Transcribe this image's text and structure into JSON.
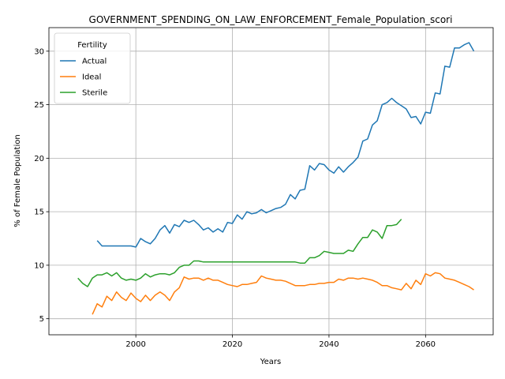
{
  "chart_data": {
    "type": "line",
    "title": "GOVERNMENT_SPENDING_ON_LAW_ENFORCEMENT_Female_Population_scori",
    "xlabel": "Years",
    "ylabel": "% of Female Population",
    "xlim": [
      1982,
      2074
    ],
    "ylim": [
      3.5,
      32.2
    ],
    "xticks": [
      2000,
      2020,
      2040,
      2060
    ],
    "yticks": [
      5,
      10,
      15,
      20,
      25,
      30
    ],
    "grid": true,
    "legend": {
      "title": "Fertility",
      "placement": "top-left"
    },
    "series": [
      {
        "name": "Actual",
        "color": "#1f77b4",
        "x": [
          1992,
          1993,
          1994,
          1995,
          1996,
          1997,
          1998,
          1999,
          2000,
          2001,
          2002,
          2003,
          2004,
          2005,
          2006,
          2007,
          2008,
          2009,
          2010,
          2011,
          2012,
          2013,
          2014,
          2015,
          2016,
          2017,
          2018,
          2019,
          2020,
          2021,
          2022,
          2023,
          2024,
          2025,
          2026,
          2027,
          2028,
          2029,
          2030,
          2031,
          2032,
          2033,
          2034,
          2035,
          2036,
          2037,
          2038,
          2039,
          2040,
          2041,
          2042,
          2043,
          2044,
          2045,
          2046,
          2047,
          2048,
          2049,
          2050,
          2051,
          2052,
          2053,
          2054,
          2055,
          2056,
          2057,
          2058,
          2059,
          2060,
          2061,
          2062,
          2063,
          2064,
          2065,
          2066,
          2067,
          2068,
          2069,
          2070
        ],
        "y": [
          12.3,
          11.8,
          11.8,
          11.8,
          11.8,
          11.8,
          11.8,
          11.8,
          11.7,
          12.5,
          12.2,
          12.0,
          12.5,
          13.3,
          13.7,
          13.0,
          13.8,
          13.6,
          14.2,
          14.0,
          14.2,
          13.8,
          13.3,
          13.5,
          13.1,
          13.4,
          13.1,
          14.0,
          13.9,
          14.7,
          14.3,
          15.0,
          14.8,
          14.9,
          15.2,
          14.9,
          15.1,
          15.3,
          15.4,
          15.7,
          16.6,
          16.2,
          17.0,
          17.1,
          19.3,
          18.9,
          19.5,
          19.4,
          18.9,
          18.6,
          19.2,
          18.7,
          19.2,
          19.6,
          20.1,
          21.6,
          21.8,
          23.1,
          23.5,
          25.0,
          25.2,
          25.6,
          25.2,
          24.9,
          24.6,
          23.8,
          23.9,
          23.2,
          24.3,
          24.2,
          26.1,
          26.0,
          28.6,
          28.5,
          30.3,
          30.3,
          30.6,
          30.8,
          30.0
        ]
      },
      {
        "name": "Ideal",
        "color": "#ff7f0e",
        "x": [
          1991,
          1992,
          1993,
          1994,
          1995,
          1996,
          1997,
          1998,
          1999,
          2000,
          2001,
          2002,
          2003,
          2004,
          2005,
          2006,
          2007,
          2008,
          2009,
          2010,
          2011,
          2012,
          2013,
          2014,
          2015,
          2016,
          2017,
          2018,
          2019,
          2020,
          2021,
          2022,
          2023,
          2024,
          2025,
          2026,
          2027,
          2028,
          2029,
          2030,
          2031,
          2032,
          2033,
          2034,
          2035,
          2036,
          2037,
          2038,
          2039,
          2040,
          2041,
          2042,
          2043,
          2044,
          2045,
          2046,
          2047,
          2048,
          2049,
          2050,
          2051,
          2052,
          2053,
          2054,
          2055,
          2056,
          2057,
          2058,
          2059,
          2060,
          2061,
          2062,
          2063,
          2064,
          2065,
          2066,
          2067,
          2068,
          2069,
          2070
        ],
        "y": [
          5.4,
          6.4,
          6.1,
          7.1,
          6.7,
          7.5,
          7.0,
          6.7,
          7.4,
          6.9,
          6.6,
          7.2,
          6.7,
          7.2,
          7.5,
          7.2,
          6.7,
          7.5,
          7.9,
          8.9,
          8.7,
          8.8,
          8.8,
          8.6,
          8.8,
          8.6,
          8.6,
          8.4,
          8.2,
          8.1,
          8.0,
          8.2,
          8.2,
          8.3,
          8.4,
          9.0,
          8.8,
          8.7,
          8.6,
          8.6,
          8.5,
          8.3,
          8.1,
          8.1,
          8.1,
          8.2,
          8.2,
          8.3,
          8.3,
          8.4,
          8.4,
          8.7,
          8.6,
          8.8,
          8.8,
          8.7,
          8.8,
          8.7,
          8.6,
          8.4,
          8.1,
          8.1,
          7.9,
          7.8,
          7.7,
          8.3,
          7.8,
          8.6,
          8.2,
          9.2,
          9.0,
          9.3,
          9.2,
          8.8,
          8.7,
          8.6,
          8.4,
          8.2,
          8.0,
          7.7
        ]
      },
      {
        "name": "Sterile",
        "color": "#2ca02c",
        "x": [
          1988,
          1989,
          1990,
          1991,
          1992,
          1993,
          1994,
          1995,
          1996,
          1997,
          1998,
          1999,
          2000,
          2001,
          2002,
          2003,
          2004,
          2005,
          2006,
          2007,
          2008,
          2009,
          2010,
          2011,
          2012,
          2013,
          2014,
          2015,
          2016,
          2017,
          2018,
          2019,
          2020,
          2021,
          2022,
          2023,
          2024,
          2025,
          2026,
          2027,
          2028,
          2029,
          2030,
          2031,
          2032,
          2033,
          2034,
          2035,
          2036,
          2037,
          2038,
          2039,
          2040,
          2041,
          2042,
          2043,
          2044,
          2045,
          2046,
          2047,
          2048,
          2049,
          2050,
          2051,
          2052,
          2053,
          2054,
          2055
        ],
        "y": [
          8.8,
          8.3,
          8.0,
          8.8,
          9.1,
          9.1,
          9.3,
          9.0,
          9.3,
          8.8,
          8.6,
          8.7,
          8.6,
          8.8,
          9.2,
          8.9,
          9.1,
          9.2,
          9.2,
          9.1,
          9.3,
          9.8,
          10.0,
          10.0,
          10.4,
          10.4,
          10.3,
          10.3,
          10.3,
          10.3,
          10.3,
          10.3,
          10.3,
          10.3,
          10.3,
          10.3,
          10.3,
          10.3,
          10.3,
          10.3,
          10.3,
          10.3,
          10.3,
          10.3,
          10.3,
          10.3,
          10.2,
          10.2,
          10.7,
          10.7,
          10.9,
          11.3,
          11.2,
          11.1,
          11.1,
          11.1,
          11.4,
          11.3,
          12.0,
          12.6,
          12.6,
          13.3,
          13.1,
          12.5,
          13.7,
          13.7,
          13.8,
          14.3
        ]
      }
    ]
  }
}
